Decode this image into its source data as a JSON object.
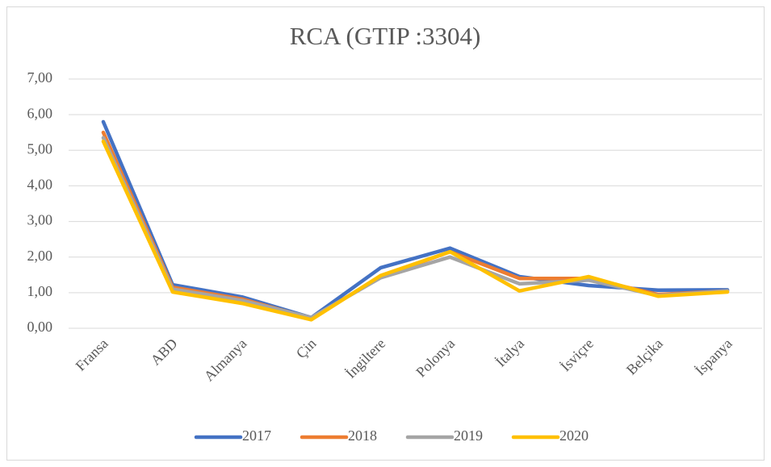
{
  "chart_data": {
    "type": "line",
    "title": "RCA (GTIP :3304)",
    "categories": [
      "Fransa",
      "ABD",
      "Almanya",
      "Çin",
      "İngiltere",
      "Polonya",
      "İtalya",
      "İsviçre",
      "Belçika",
      "İspanya"
    ],
    "series": [
      {
        "name": "2017",
        "color": "#4472c4",
        "values": [
          5.8,
          1.22,
          0.88,
          0.3,
          1.7,
          2.25,
          1.45,
          1.2,
          1.07,
          1.08
        ]
      },
      {
        "name": "2018",
        "color": "#ed7d31",
        "values": [
          5.5,
          1.15,
          0.82,
          0.28,
          1.45,
          2.15,
          1.4,
          1.4,
          0.95,
          1.05
        ]
      },
      {
        "name": "2019",
        "color": "#a5a5a5",
        "values": [
          5.35,
          1.1,
          0.78,
          0.3,
          1.42,
          2.0,
          1.25,
          1.35,
          0.92,
          1.05
        ]
      },
      {
        "name": "2020",
        "color": "#ffc000",
        "values": [
          5.25,
          1.02,
          0.7,
          0.24,
          1.48,
          2.15,
          1.05,
          1.45,
          0.9,
          1.02
        ]
      }
    ],
    "ylim": [
      0,
      7
    ],
    "yticks": [
      {
        "value": 0,
        "label": "0,00"
      },
      {
        "value": 1,
        "label": "1,00"
      },
      {
        "value": 2,
        "label": "2,00"
      },
      {
        "value": 3,
        "label": "3,00"
      },
      {
        "value": 4,
        "label": "4,00"
      },
      {
        "value": 5,
        "label": "5,00"
      },
      {
        "value": 6,
        "label": "6,00"
      },
      {
        "value": 7,
        "label": "7,00"
      }
    ],
    "grid": true,
    "legend": "bottom"
  }
}
